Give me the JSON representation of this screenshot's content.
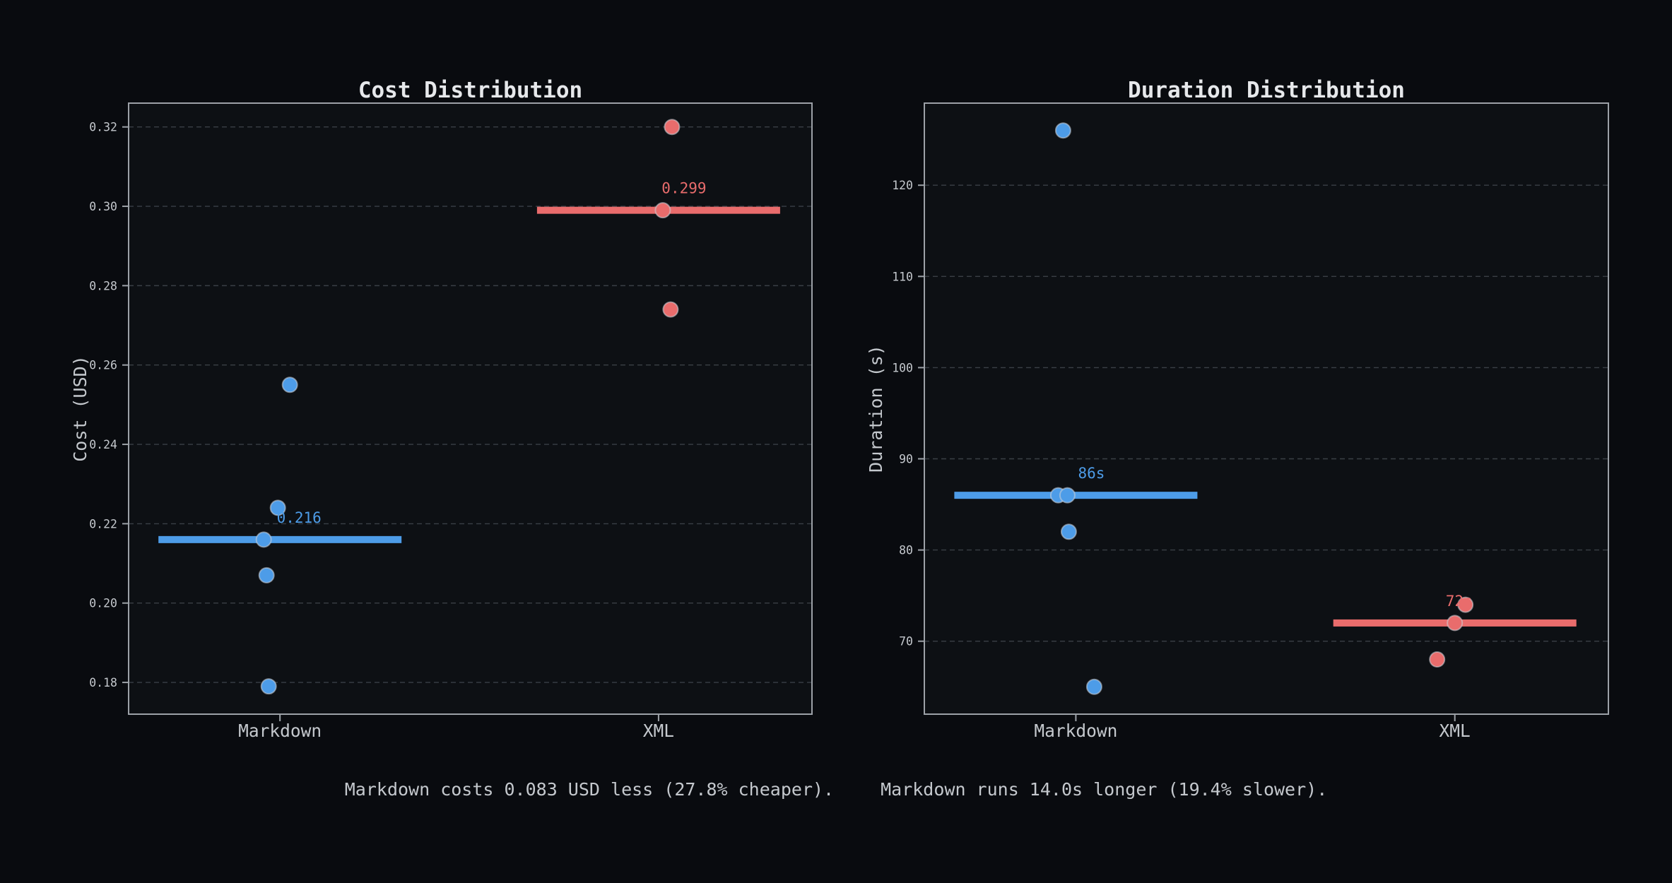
{
  "figure": {
    "background": "#090b0f",
    "axes_background": "#0d1014",
    "spine_color": "#9ca1a7",
    "grid_color": "#3a3f46",
    "tick_text_color": "#c4c8cd",
    "title_color": "#e6e8eb",
    "blue": "#4d9ce8",
    "red": "#e96c6c"
  },
  "chart_data": [
    {
      "type": "scatter",
      "title": "Cost Distribution",
      "ylabel": "Cost (USD)",
      "xlabel": "",
      "categories": [
        "Markdown",
        "XML"
      ],
      "ylim": [
        0.172,
        0.326
      ],
      "grid": "horizontal-dashed",
      "legend": "none",
      "yticks": [
        {
          "v": 0.18,
          "label": "0.18"
        },
        {
          "v": 0.2,
          "label": "0.20"
        },
        {
          "v": 0.22,
          "label": "0.22"
        },
        {
          "v": 0.24,
          "label": "0.24"
        },
        {
          "v": 0.26,
          "label": "0.26"
        },
        {
          "v": 0.28,
          "label": "0.28"
        },
        {
          "v": 0.3,
          "label": "0.30"
        },
        {
          "v": 0.32,
          "label": "0.32"
        }
      ],
      "series": [
        {
          "name": "Markdown",
          "color": "#4d9ce8",
          "median": 0.216,
          "median_label": "0.216",
          "label_dx": 27,
          "points": [
            {
              "v": 0.255,
              "dx": 14
            },
            {
              "v": 0.224,
              "dx": -3
            },
            {
              "v": 0.216,
              "dx": -23
            },
            {
              "v": 0.207,
              "dx": -19
            },
            {
              "v": 0.179,
              "dx": -16
            }
          ]
        },
        {
          "name": "XML",
          "color": "#e96c6c",
          "median": 0.299,
          "median_label": "0.299",
          "label_dx": 36,
          "points": [
            {
              "v": 0.32,
              "dx": 19
            },
            {
              "v": 0.299,
              "dx": 6
            },
            {
              "v": 0.274,
              "dx": 17
            }
          ]
        }
      ],
      "annotation": "Markdown costs 0.083 USD less (27.8% cheaper)."
    },
    {
      "type": "scatter",
      "title": "Duration Distribution",
      "ylabel": "Duration (s)",
      "xlabel": "",
      "categories": [
        "Markdown",
        "XML"
      ],
      "ylim": [
        62,
        129
      ],
      "grid": "horizontal-dashed",
      "legend": "none",
      "yticks": [
        {
          "v": 70,
          "label": "70"
        },
        {
          "v": 80,
          "label": "80"
        },
        {
          "v": 90,
          "label": "90"
        },
        {
          "v": 100,
          "label": "100"
        },
        {
          "v": 110,
          "label": "110"
        },
        {
          "v": 120,
          "label": "120"
        }
      ],
      "series": [
        {
          "name": "Markdown",
          "color": "#4d9ce8",
          "median": 86,
          "median_label": "86s",
          "label_dx": 22,
          "points": [
            {
              "v": 126,
              "dx": -18
            },
            {
              "v": 86,
              "dx": -25
            },
            {
              "v": 86,
              "dx": -12
            },
            {
              "v": 82,
              "dx": -10
            },
            {
              "v": 65,
              "dx": 26
            }
          ]
        },
        {
          "name": "XML",
          "color": "#e96c6c",
          "median": 72,
          "median_label": "72s",
          "label_dx": 6,
          "points": [
            {
              "v": 74,
              "dx": 15
            },
            {
              "v": 72,
              "dx": 0
            },
            {
              "v": 68,
              "dx": -25
            }
          ]
        }
      ],
      "annotation": "Markdown runs 14.0s longer (19.4% slower)."
    }
  ]
}
